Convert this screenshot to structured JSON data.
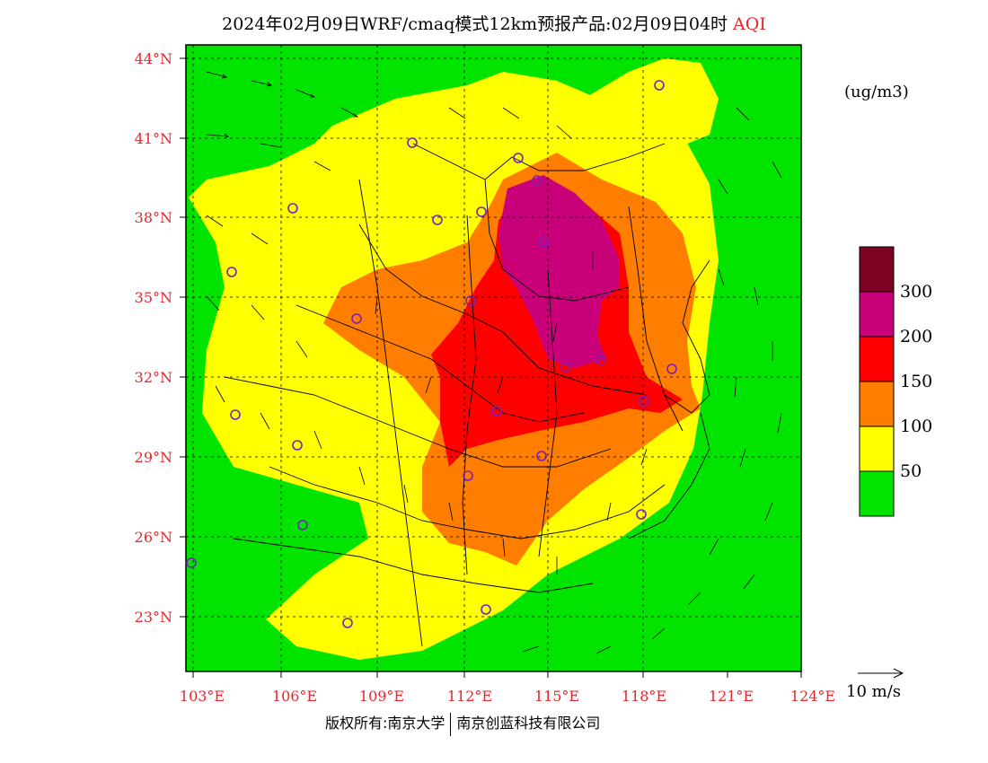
{
  "title": {
    "main": "2024年02月09日WRF/cmaq模式12km预报产品:02月09日04时",
    "variable": "AQI"
  },
  "colors": {
    "label_red": "#e8262b",
    "aqi_0_50": "#00e400",
    "aqi_50_100": "#ffff00",
    "aqi_100_150": "#ff7e00",
    "aqi_150_200": "#ff0000",
    "aqi_200_300": "#c9007a",
    "aqi_300_plus": "#7e0023",
    "city_marker": "#7a1fbf"
  },
  "axes": {
    "lat_labels": [
      "44°N",
      "41°N",
      "38°N",
      "35°N",
      "32°N",
      "29°N",
      "26°N",
      "23°N"
    ],
    "lon_labels": [
      "103°E",
      "106°E",
      "109°E",
      "112°E",
      "115°E",
      "118°E",
      "121°E",
      "124°E"
    ]
  },
  "legend": {
    "unit": "(ug/m3)",
    "levels": [
      "50",
      "100",
      "150",
      "200",
      "300"
    ]
  },
  "wind_reference": "10 m/s",
  "copyright": {
    "left": "版权所有:南京大学",
    "right": "南京创蓝科技有限公司"
  }
}
